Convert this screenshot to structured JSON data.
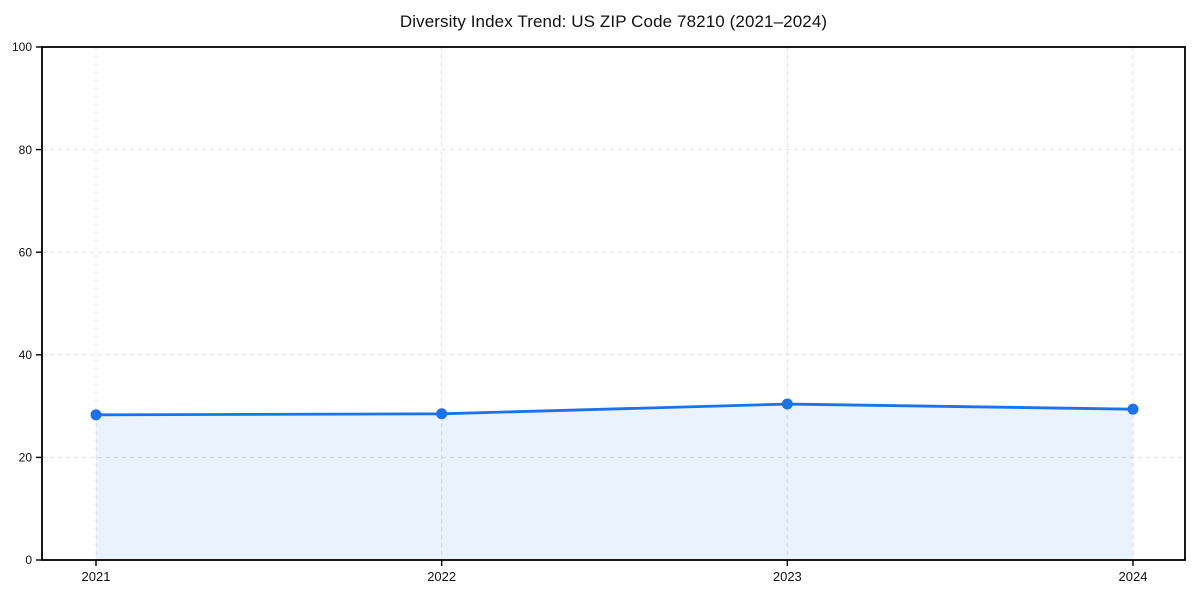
{
  "chart_data": {
    "type": "area",
    "title": "Diversity Index Trend: US ZIP Code 78210 (2021–2024)",
    "categories": [
      "2021",
      "2022",
      "2023",
      "2024"
    ],
    "values": [
      28.3,
      28.5,
      30.4,
      29.4
    ],
    "xlabel": "",
    "ylabel": "",
    "ylim": [
      0,
      100
    ],
    "yticks": [
      0,
      20,
      40,
      60,
      80,
      100
    ],
    "grid": "dashed-both-axes",
    "legend": "none",
    "colors": {
      "line": "#1a73e8",
      "marker": "#1a73e8",
      "fill": "#1a73e8",
      "fill_opacity": 0.09,
      "grid": "#e0e0e0",
      "axis": "#000000",
      "tick_text": "#111111",
      "background": "#ffffff"
    }
  }
}
